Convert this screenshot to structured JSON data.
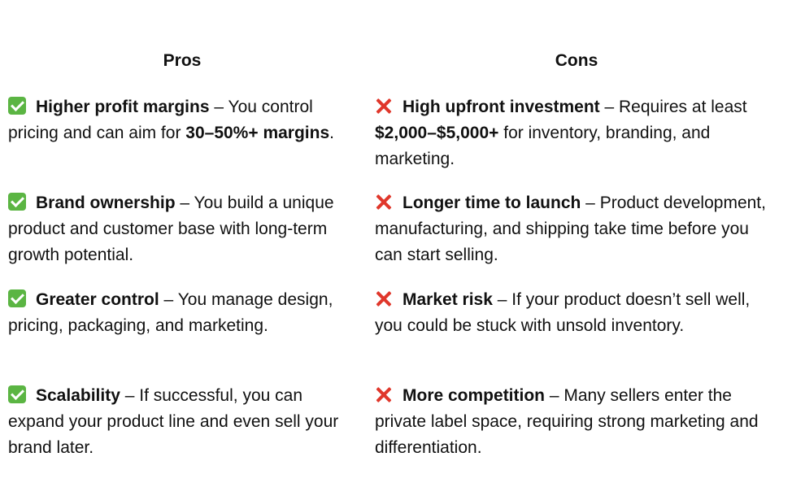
{
  "pros": {
    "header": "Pros",
    "icon": "check-mark-button-icon",
    "icon_color": "#5bb543",
    "items": [
      {
        "segments": [
          {
            "t": "Higher profit margins",
            "b": true
          },
          {
            "t": " – You control pricing and can aim for ",
            "b": false
          },
          {
            "t": "30–50%+ margins",
            "b": true
          },
          {
            "t": ".",
            "b": false
          }
        ]
      },
      {
        "segments": [
          {
            "t": "Brand ownership",
            "b": true
          },
          {
            "t": " – You build a unique product and customer base with long-term growth potential.",
            "b": false
          }
        ]
      },
      {
        "segments": [
          {
            "t": "Greater control",
            "b": true
          },
          {
            "t": " – You manage design, pricing, packaging, and marketing.",
            "b": false
          }
        ]
      },
      {
        "segments": [
          {
            "t": "Scalability",
            "b": true
          },
          {
            "t": " – If successful, you can expand your product line and even sell your brand later.",
            "b": false
          }
        ]
      }
    ]
  },
  "cons": {
    "header": "Cons",
    "icon": "cross-mark-icon",
    "icon_color": "#e0372b",
    "items": [
      {
        "segments": [
          {
            "t": "High upfront investment",
            "b": true
          },
          {
            "t": " – Requires at least ",
            "b": false
          },
          {
            "t": "$2,000–$5,000+",
            "b": true
          },
          {
            "t": " for inventory, branding, and marketing.",
            "b": false
          }
        ]
      },
      {
        "segments": [
          {
            "t": "Longer time to launch",
            "b": true
          },
          {
            "t": " – Product development, manufacturing, and shipping take time before you can start selling.",
            "b": false
          }
        ]
      },
      {
        "segments": [
          {
            "t": "Market risk",
            "b": true
          },
          {
            "t": " – If your product doesn’t sell well, you could be stuck with unsold inventory.",
            "b": false
          }
        ]
      },
      {
        "segments": [
          {
            "t": "More competition",
            "b": true
          },
          {
            "t": " – Many sellers enter the private label space, requiring strong marketing and differentiation.",
            "b": false
          }
        ]
      }
    ]
  }
}
